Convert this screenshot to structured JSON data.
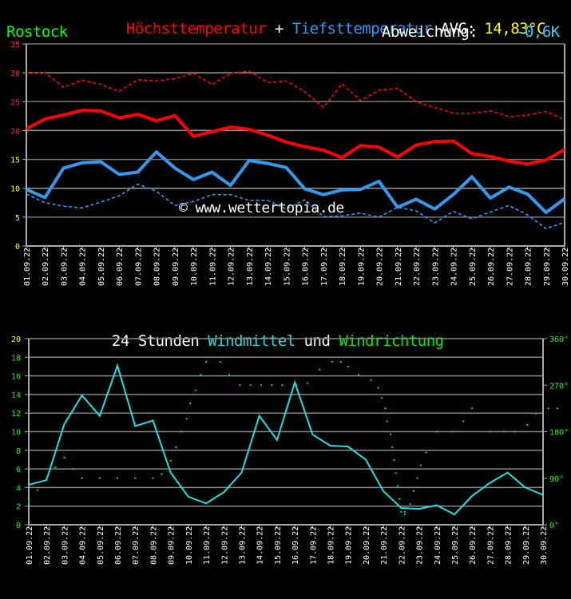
{
  "header": {
    "title_max": "Höchsttemperatur",
    "title_plus": " + ",
    "title_min": "Tiefsttemperatur",
    "avg_label": " AVG: ",
    "avg_value": "14,83°C",
    "station": "Rostock",
    "deviation_label": "Abweichung:",
    "deviation_value": "-0,6K"
  },
  "wind_header": {
    "prefix": "24 Stunden ",
    "speed": "Windmittel",
    "mid": " und ",
    "direction": "Windrichtung"
  },
  "watermark": "© www.wettertopia.de",
  "colors": {
    "max": "#ff0000",
    "min": "#3399ee",
    "avg": "#ffff00",
    "station": "#00ff00",
    "deviation": "#33ccff",
    "wind_speed": "#22dddd",
    "wind_dir": "#00ee00",
    "grid": "#888888"
  },
  "chart_data": [
    {
      "type": "line",
      "title": "Höchsttemperatur + Tiefsttemperatur",
      "xlabel": "",
      "ylabel": "°C",
      "ylim": [
        0,
        35
      ],
      "yticks": [
        0,
        5,
        10,
        15,
        20,
        25,
        30,
        35
      ],
      "categories": [
        "01.09.22",
        "02.09.22",
        "03.09.22",
        "04.09.22",
        "05.09.22",
        "06.09.22",
        "07.09.22",
        "08.09.22",
        "09.09.22",
        "10.09.22",
        "11.09.22",
        "12.09.22",
        "13.09.22",
        "14.09.22",
        "15.09.22",
        "16.09.22",
        "17.09.22",
        "18.09.22",
        "19.09.22",
        "20.09.22",
        "21.09.22",
        "22.09.22",
        "23.09.22",
        "24.09.22",
        "25.09.22",
        "26.09.22",
        "27.09.22",
        "28.09.22",
        "29.09.22",
        "30.09.22"
      ],
      "series": [
        {
          "name": "Höchsttemperatur",
          "style": "solid",
          "color": "#ff0000",
          "values": [
            20.3,
            22.0,
            22.7,
            23.5,
            23.4,
            22.2,
            22.8,
            21.7,
            22.6,
            19.0,
            19.8,
            20.6,
            20.2,
            19.2,
            18.0,
            17.2,
            16.6,
            15.3,
            17.4,
            17.1,
            15.4,
            17.5,
            18.1,
            18.2,
            16.0,
            15.5,
            14.7,
            14.2,
            14.9,
            16.7
          ]
        },
        {
          "name": "Tiefsttemperatur",
          "style": "solid",
          "color": "#3399ee",
          "values": [
            9.8,
            8.4,
            13.5,
            14.4,
            14.6,
            12.4,
            12.8,
            16.3,
            13.5,
            11.5,
            12.8,
            10.5,
            14.8,
            14.3,
            13.6,
            9.9,
            8.9,
            9.7,
            9.8,
            11.2,
            6.7,
            8.1,
            6.4,
            8.9,
            12.0,
            8.3,
            10.2,
            9.0,
            5.8,
            8.2
          ]
        },
        {
          "name": "Höchsttemperatur (Vergleich)",
          "style": "dashed",
          "color": "#ff0000",
          "values": [
            30.0,
            30.0,
            27.5,
            28.7,
            28.0,
            26.8,
            28.8,
            28.6,
            29.0,
            29.9,
            28.0,
            29.9,
            30.3,
            28.3,
            28.6,
            26.7,
            24.0,
            28.1,
            25.2,
            27.0,
            27.3,
            25.0,
            24.0,
            23.0,
            23.0,
            23.4,
            22.4,
            22.7,
            23.3,
            21.9
          ]
        },
        {
          "name": "Tiefsttemperatur (Vergleich)",
          "style": "dashed",
          "color": "#3399ee",
          "values": [
            9.0,
            7.5,
            6.9,
            6.6,
            7.6,
            8.7,
            10.7,
            9.5,
            7.0,
            7.7,
            8.9,
            8.9,
            7.9,
            7.9,
            6.4,
            8.0,
            5.1,
            5.2,
            5.7,
            5.0,
            6.7,
            6.1,
            4.0,
            6.0,
            4.7,
            5.9,
            7.0,
            5.4,
            3.0,
            4.1
          ]
        }
      ],
      "grid": true
    },
    {
      "type": "line",
      "title": "24 Stunden Windmittel und Windrichtung",
      "ylim": [
        0,
        20
      ],
      "yticks": [
        0,
        2,
        4,
        6,
        8,
        10,
        12,
        14,
        16,
        18,
        20
      ],
      "y2lim": [
        0,
        360
      ],
      "y2ticks": [
        "0°",
        "90°",
        "180°",
        "270°",
        "360°"
      ],
      "categories": [
        "01.09.22",
        "02.09.22",
        "03.09.22",
        "04.09.22",
        "05.09.22",
        "06.09.22",
        "07.09.22",
        "08.09.22",
        "09.09.22",
        "10.09.22",
        "11.09.22",
        "12.09.22",
        "13.09.22",
        "14.09.22",
        "15.09.22",
        "16.09.22",
        "17.09.22",
        "18.09.22",
        "19.09.22",
        "20.09.22",
        "21.09.22",
        "22.09.22",
        "23.09.22",
        "24.09.22",
        "25.09.22",
        "26.09.22",
        "27.09.22",
        "28.09.22",
        "29.09.22",
        "30.09.22"
      ],
      "series": [
        {
          "name": "Windmittel",
          "axis": "left",
          "color": "#22dddd",
          "values": [
            4.3,
            4.8,
            10.8,
            13.9,
            11.7,
            17.1,
            10.6,
            11.2,
            5.6,
            3.0,
            2.3,
            3.5,
            5.6,
            11.7,
            9.1,
            15.3,
            9.7,
            8.5,
            8.4,
            7.0,
            3.6,
            1.8,
            1.7,
            2.1,
            1.1,
            3.1,
            4.5,
            5.6,
            4.0,
            3.2
          ]
        },
        {
          "name": "Windrichtung",
          "axis": "right",
          "type": "scatter",
          "color": "#00ee00",
          "points": [
            [
              0,
              45
            ],
            [
              0.5,
              67
            ],
            [
              1,
              90
            ],
            [
              1.5,
              111
            ],
            [
              2,
              130
            ],
            [
              2.5,
              108
            ],
            [
              3,
              90
            ],
            [
              4,
              90
            ],
            [
              5,
              90
            ],
            [
              6,
              90
            ],
            [
              7,
              90
            ],
            [
              7.5,
              98
            ],
            [
              8,
              124
            ],
            [
              8.3,
              150
            ],
            [
              8.6,
              180
            ],
            [
              8.9,
              205
            ],
            [
              9.1,
              235
            ],
            [
              9.4,
              260
            ],
            [
              9.7,
              290
            ],
            [
              10,
              315
            ],
            [
              10.8,
              315
            ],
            [
              11.3,
              290
            ],
            [
              11.9,
              270
            ],
            [
              12.5,
              270
            ],
            [
              13.1,
              270
            ],
            [
              13.7,
              270
            ],
            [
              14.3,
              270
            ],
            [
              15.1,
              270
            ],
            [
              15.7,
              274
            ],
            [
              16.4,
              300
            ],
            [
              17.1,
              315
            ],
            [
              17.6,
              315
            ],
            [
              18,
              306
            ],
            [
              18.6,
              290
            ],
            [
              19.3,
              280
            ],
            [
              19.7,
              265
            ],
            [
              19.9,
              245
            ],
            [
              20.1,
              225
            ],
            [
              20.2,
              200
            ],
            [
              20.4,
              175
            ],
            [
              20.5,
              150
            ],
            [
              20.6,
              125
            ],
            [
              20.7,
              100
            ],
            [
              20.8,
              75
            ],
            [
              20.9,
              50
            ],
            [
              21,
              25
            ],
            [
              21.2,
              25
            ],
            [
              21.2,
              20
            ],
            [
              21.5,
              40
            ],
            [
              21.7,
              65
            ],
            [
              21.9,
              90
            ],
            [
              22.1,
              115
            ],
            [
              22.4,
              140
            ],
            [
              23,
              180
            ],
            [
              23.9,
              180
            ],
            [
              24.5,
              200
            ],
            [
              25,
              225
            ],
            [
              26,
              180
            ],
            [
              26.8,
              180
            ],
            [
              27.4,
              180
            ],
            [
              28.1,
              193
            ],
            [
              28.6,
              215
            ],
            [
              29.3,
              225
            ],
            [
              29.8,
              225
            ]
          ]
        }
      ],
      "grid": true
    }
  ]
}
